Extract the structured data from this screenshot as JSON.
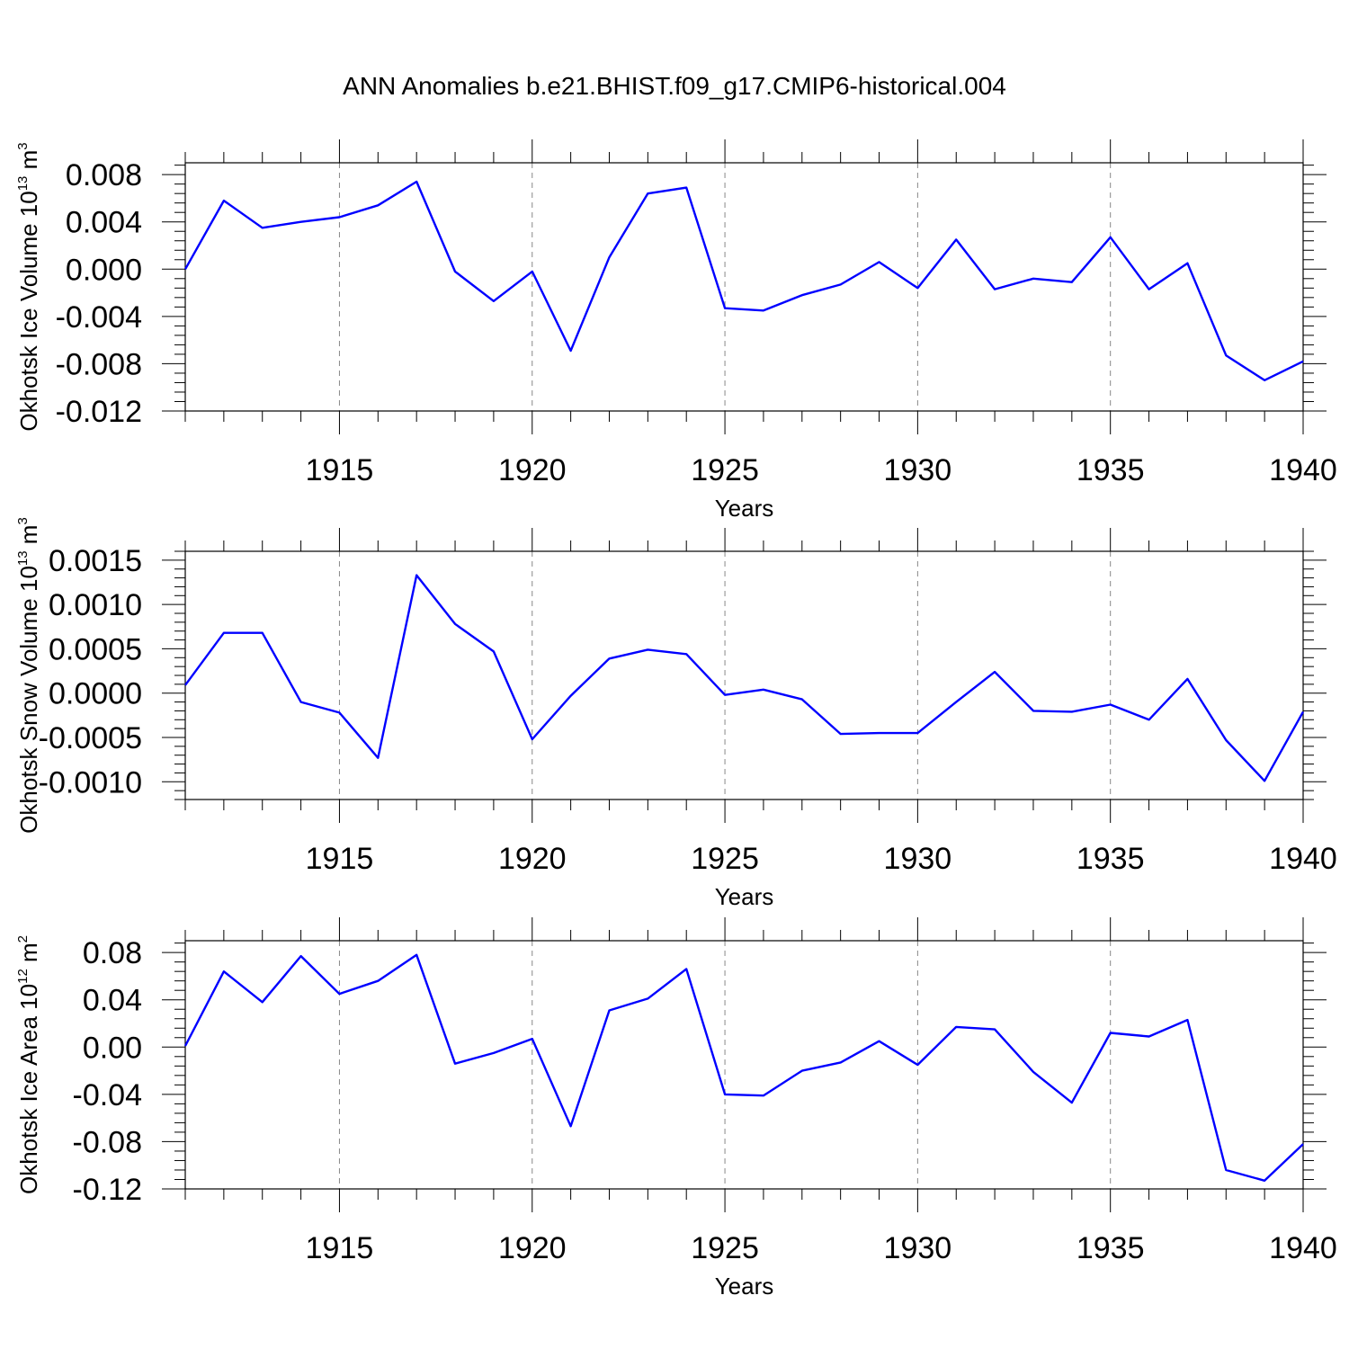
{
  "figure": {
    "title": "ANN Anomalies b.e21.BHIST.f09_g17.CMIP6-historical.004"
  },
  "colors": {
    "line": "#0000ff",
    "axis": "#000000",
    "grid": "#888888"
  },
  "chart_data": [
    {
      "type": "line",
      "title": "",
      "xlabel": "Years",
      "ylabel": {
        "base": "Okhotsk Ice Volume 10",
        "exp1": "13",
        "unit": " m",
        "exp2": "3"
      },
      "xlim": [
        1911,
        1940
      ],
      "ylim": [
        -0.012,
        0.009
      ],
      "xticks": [
        1915,
        1920,
        1925,
        1930,
        1935,
        1940
      ],
      "yticks": [
        0.008,
        0.004,
        0.0,
        -0.004,
        -0.008,
        -0.012
      ],
      "ytick_labels": [
        "0.008",
        "0.004",
        "0.000",
        "-0.004",
        "-0.008",
        "-0.012"
      ],
      "grid": "dashed vertical at major x ticks",
      "series": [
        {
          "x": [
            1911,
            1912,
            1913,
            1914,
            1915,
            1916,
            1917,
            1918,
            1919,
            1920,
            1921,
            1922,
            1923,
            1924,
            1925,
            1926,
            1927,
            1928,
            1929,
            1930,
            1931,
            1932,
            1933,
            1934,
            1935,
            1936,
            1937,
            1938,
            1939,
            1940
          ],
          "values": [
            0.0,
            0.0058,
            0.0035,
            0.004,
            0.0044,
            0.0054,
            0.0074,
            -0.0002,
            -0.0027,
            -0.0002,
            -0.0069,
            0.001,
            0.0064,
            0.0069,
            -0.0033,
            -0.0035,
            -0.0022,
            -0.0013,
            0.0006,
            -0.0016,
            0.0025,
            -0.0017,
            -0.0008,
            -0.0011,
            0.0027,
            -0.0017,
            0.0005,
            -0.0073,
            -0.0094,
            -0.0078
          ]
        }
      ]
    },
    {
      "type": "line",
      "title": "",
      "xlabel": "Years",
      "ylabel": {
        "base": "Okhotsk Snow Volume 10",
        "exp1": "13",
        "unit": " m",
        "exp2": "3"
      },
      "xlim": [
        1911,
        1940
      ],
      "ylim": [
        -0.0012,
        0.0016
      ],
      "xticks": [
        1915,
        1920,
        1925,
        1930,
        1935,
        1940
      ],
      "yticks": [
        0.0015,
        0.001,
        0.0005,
        0.0,
        -0.0005,
        -0.001
      ],
      "ytick_labels": [
        "0.0015",
        "0.0010",
        "0.0005",
        "0.0000",
        "-0.0005",
        "-0.0010"
      ],
      "grid": "dashed vertical at major x ticks",
      "series": [
        {
          "x": [
            1911,
            1912,
            1913,
            1914,
            1915,
            1916,
            1917,
            1918,
            1919,
            1920,
            1921,
            1922,
            1923,
            1924,
            1925,
            1926,
            1927,
            1928,
            1929,
            1930,
            1931,
            1932,
            1933,
            1934,
            1935,
            1936,
            1937,
            1938,
            1939,
            1940
          ],
          "values": [
            9e-05,
            0.00068,
            0.00068,
            -0.0001,
            -0.00022,
            -0.00073,
            0.00133,
            0.00078,
            0.00047,
            -0.00052,
            -3e-05,
            0.00039,
            0.00049,
            0.00044,
            -2e-05,
            4e-05,
            -7e-05,
            -0.00046,
            -0.00045,
            -0.00045,
            -0.0001,
            0.00024,
            -0.0002,
            -0.00021,
            -0.00013,
            -0.0003,
            0.00016,
            -0.00053,
            -0.00099,
            -0.00021
          ]
        }
      ]
    },
    {
      "type": "line",
      "title": "",
      "xlabel": "Years",
      "ylabel": {
        "base": "Okhotsk Ice Area 10",
        "exp1": "12",
        "unit": " m",
        "exp2": "2"
      },
      "xlim": [
        1911,
        1940
      ],
      "ylim": [
        -0.12,
        0.09
      ],
      "xticks": [
        1915,
        1920,
        1925,
        1930,
        1935,
        1940
      ],
      "yticks": [
        0.08,
        0.04,
        0.0,
        -0.04,
        -0.08,
        -0.12
      ],
      "ytick_labels": [
        "0.08",
        "0.04",
        "0.00",
        "-0.04",
        "-0.08",
        "-0.12"
      ],
      "grid": "dashed vertical at major x ticks",
      "series": [
        {
          "x": [
            1911,
            1912,
            1913,
            1914,
            1915,
            1916,
            1917,
            1918,
            1919,
            1920,
            1921,
            1922,
            1923,
            1924,
            1925,
            1926,
            1927,
            1928,
            1929,
            1930,
            1931,
            1932,
            1933,
            1934,
            1935,
            1936,
            1937,
            1938,
            1939,
            1940
          ],
          "values": [
            0.001,
            0.064,
            0.038,
            0.077,
            0.045,
            0.056,
            0.078,
            -0.014,
            -0.005,
            0.007,
            -0.067,
            0.031,
            0.041,
            0.066,
            -0.04,
            -0.041,
            -0.02,
            -0.013,
            0.005,
            -0.015,
            0.017,
            0.015,
            -0.021,
            -0.047,
            0.012,
            0.009,
            0.023,
            -0.104,
            -0.113,
            -0.082
          ]
        }
      ]
    }
  ]
}
